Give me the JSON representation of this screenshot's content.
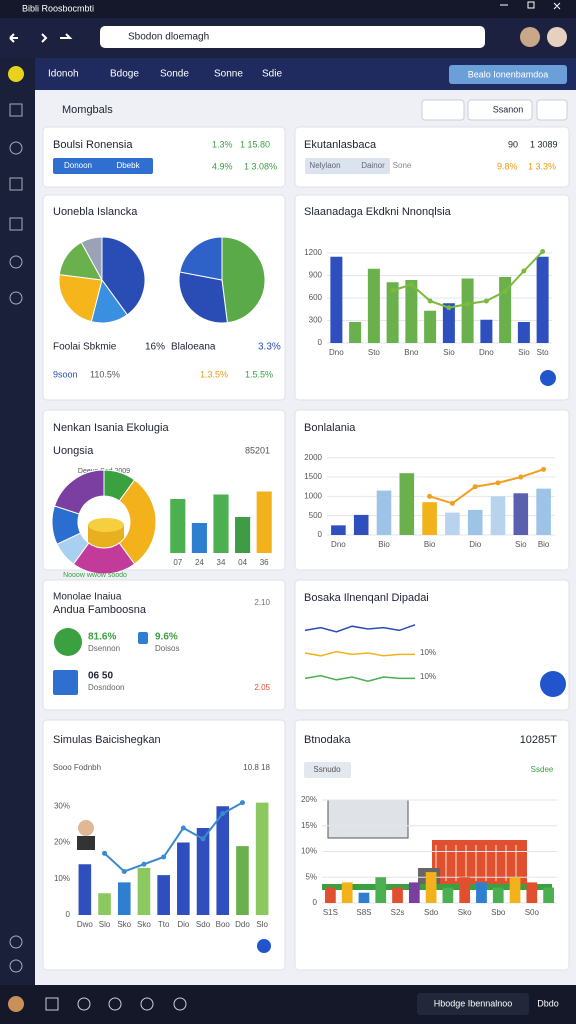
{
  "browser": {
    "tab_title": "Bibli Roosbocmbti",
    "url": "Sbodon dloemagh"
  },
  "nav": {
    "tabs": [
      "Idonoh",
      "Bdoge",
      "Sonde",
      "Sonne",
      "Sdie"
    ],
    "button": "Bealo Ionenbamdoa"
  },
  "header": {
    "title": "Momgbals",
    "button": "Ssanon"
  },
  "kpi": [
    {
      "title": "Boulsi Ronensia",
      "stats": [
        "1.3%",
        "1 15.80",
        "4.9%",
        "1 3.08%"
      ],
      "tags": [
        "Donoon",
        "Dbebk"
      ]
    },
    {
      "title": "Ekutanlasbaca",
      "stats": [
        "90",
        "1 3089",
        "9.8%",
        "1 3.3%"
      ],
      "tags": [
        "Nelylaon",
        "Dainor",
        "Sone"
      ]
    }
  ],
  "pie_card": {
    "title": "Uonebla Islancka",
    "labels": [
      "Foolai Sbkmie",
      "16%",
      "Blaloeana",
      "3.3%"
    ],
    "stats": [
      "9soon",
      "110.5%",
      "1.3.5%",
      "1.5.5%"
    ],
    "pies": [
      {
        "values": [
          40,
          14,
          23,
          15,
          8
        ],
        "colors": [
          "#2a4db5",
          "#3b8fe0",
          "#f5b51b",
          "#6ab04c",
          "#9aa3b5"
        ]
      },
      {
        "values": [
          48,
          30,
          22
        ],
        "colors": [
          "#5aaa4a",
          "#2a4db5",
          "#2e62c8"
        ]
      }
    ]
  },
  "combo_chart": {
    "title": "Slaanadaga Ekdkni Nnonqlsia",
    "ylim": [
      0,
      1400
    ],
    "yticks": [
      0,
      300,
      600,
      900,
      1200
    ],
    "grid": true,
    "categories": [
      "Dno",
      null,
      "Sto",
      null,
      "Bno",
      null,
      "Sio",
      null,
      "Dno",
      null,
      "Sio",
      "Sto"
    ],
    "bars": {
      "values": [
        1150,
        280,
        990,
        810,
        840,
        430,
        530,
        860,
        310,
        880,
        280,
        1150
      ],
      "colors": [
        "#2f4fbf",
        "#6ab04c",
        "#6ab04c",
        "#6ab04c",
        "#6ab04c",
        "#6ab04c",
        "#2f4fbf",
        "#6ab04c",
        "#2f4fbf",
        "#6ab04c",
        "#2f4fbf",
        "#2f4fbf"
      ]
    },
    "line": {
      "values": [
        null,
        null,
        null,
        700,
        780,
        560,
        470,
        520,
        560,
        690,
        960,
        1220
      ],
      "color": "#7cba3e"
    }
  },
  "donut_card": {
    "title": "Nenkan Isania Ekolugia",
    "subtitle": "Uongsia",
    "total": "85201",
    "note_top": "Deeus Sed 2009",
    "note_bottom": "Nooow wwow soodo",
    "donut": {
      "values": [
        10,
        30,
        20,
        8,
        12,
        20
      ],
      "colors": [
        "#3aa040",
        "#f3b21b",
        "#c23a9a",
        "#a9d0f0",
        "#2a6fd0",
        "#7a3fa0"
      ]
    },
    "bars": {
      "ylim": [
        0,
        100
      ],
      "categories": [
        "07",
        "24",
        "34",
        "04",
        "36"
      ],
      "values": [
        72,
        40,
        78,
        48,
        82
      ],
      "colors": [
        "#4caf50",
        "#2f7fd0",
        "#4caf50",
        "#3d9c45",
        "#f3b21b"
      ]
    }
  },
  "bar_line_chart": {
    "title": "Bonlalania",
    "ylim": [
      0,
      2200
    ],
    "yticks": [
      0,
      500,
      1000,
      1500,
      2000
    ],
    "grid": true,
    "categories": [
      "Dno",
      null,
      "Bio",
      null,
      "Bio",
      null,
      "Dio",
      null,
      "Sio",
      "Bio"
    ],
    "bars": {
      "values": [
        250,
        520,
        1150,
        1600,
        850,
        580,
        650,
        1000,
        1080,
        1200
      ],
      "colors": [
        "#2f4fbf",
        "#2f4fbf",
        "#9dc3e6",
        "#6ab04c",
        "#f2b21b",
        "#b7d3ee",
        "#9dc3e6",
        "#b7d3ee",
        "#5a5fb0",
        "#9dc3e6"
      ]
    },
    "line": {
      "values": [
        null,
        null,
        null,
        null,
        1000,
        820,
        1250,
        1350,
        1500,
        1700
      ],
      "color": "#f0a020"
    }
  },
  "list_card": {
    "title": [
      "Monolae Inaiua",
      "Andua Famboosna"
    ],
    "meta": [
      "2.10",
      "2.05"
    ],
    "items": [
      {
        "value": "81.6%",
        "label": "Dsennon"
      },
      {
        "value": "9.6%",
        "label": "Doisos"
      },
      {
        "value": "06 50",
        "label": "Dosndoon"
      }
    ]
  },
  "spark_card": {
    "title": "Bosaka Ilnenqanl Dipadai",
    "ylim": [
      0,
      10
    ],
    "labels": [
      "10%",
      "10%"
    ],
    "lines": [
      {
        "color": "#2a4db5",
        "values": [
          4,
          6,
          3,
          7,
          5,
          6,
          4,
          8
        ]
      },
      {
        "color": "#f2b21b",
        "values": [
          5,
          3,
          6,
          4,
          5,
          3,
          4,
          4
        ]
      },
      {
        "color": "#4caf50",
        "values": [
          4,
          6,
          3,
          5,
          2,
          5,
          4,
          4
        ]
      }
    ]
  },
  "sim_chart": {
    "title": "Simulas Baicishegkan",
    "subtitle": "Sooo Fodnbh",
    "meta": "10.8 18",
    "ylim": [
      0,
      40
    ],
    "yticks": [
      0,
      {
        "value": 10,
        "label": "10%"
      },
      {
        "value": 20,
        "label": "20%"
      },
      {
        "value": 30,
        "label": "30%"
      }
    ],
    "grid": false,
    "categories": [
      "Dwo",
      "Slo",
      "Sko",
      "Sko",
      "Tto",
      "Dio",
      "Sdo",
      "Boo",
      "Ddo",
      "Slo"
    ],
    "bars": {
      "values": [
        14,
        6,
        9,
        13,
        11,
        20,
        24,
        30,
        19,
        31
      ],
      "colors": [
        "#2f4fbf",
        "#8cc860",
        "#2f7fd0",
        "#8cc860",
        "#2f4fbf",
        "#2f4fbf",
        "#2f4fbf",
        "#2f4fbf",
        "#6ab04c",
        "#8cc860"
      ]
    },
    "line": {
      "values": [
        null,
        17,
        12,
        14,
        16,
        24,
        21,
        28,
        31,
        null
      ],
      "color": "#3a8ad0"
    }
  },
  "skyline_chart": {
    "title": "Btnodaka",
    "meta": "10285T",
    "tag": "Ssnudo",
    "button": "Ssdee",
    "ylim": [
      0,
      20
    ],
    "yticks": [
      0,
      {
        "value": 5,
        "label": "5%"
      },
      {
        "value": 10,
        "label": "10%"
      },
      {
        "value": 15,
        "label": "15%"
      },
      {
        "value": 20,
        "label": "20%"
      }
    ],
    "grid": true,
    "categories": [
      "S1S",
      null,
      "S8S",
      null,
      "S2s",
      null,
      "Sdo",
      null,
      "Sko",
      null,
      "Sbo",
      null,
      "S0o",
      null
    ],
    "bars": {
      "values": [
        3,
        4,
        2,
        5,
        3,
        4,
        6,
        3,
        5,
        4,
        3,
        5,
        4,
        3
      ],
      "colors": [
        "#e05030",
        "#f3b21b",
        "#2f7fd0",
        "#4caf50",
        "#e05030",
        "#7a3fa0",
        "#f3b21b",
        "#4caf50",
        "#e05030",
        "#2f7fd0",
        "#4caf50",
        "#f3b21b",
        "#e05030",
        "#4caf50"
      ]
    }
  },
  "taskbar": {
    "button": "Hbodge Ibennalnoo",
    "clock": "Dbdo"
  }
}
